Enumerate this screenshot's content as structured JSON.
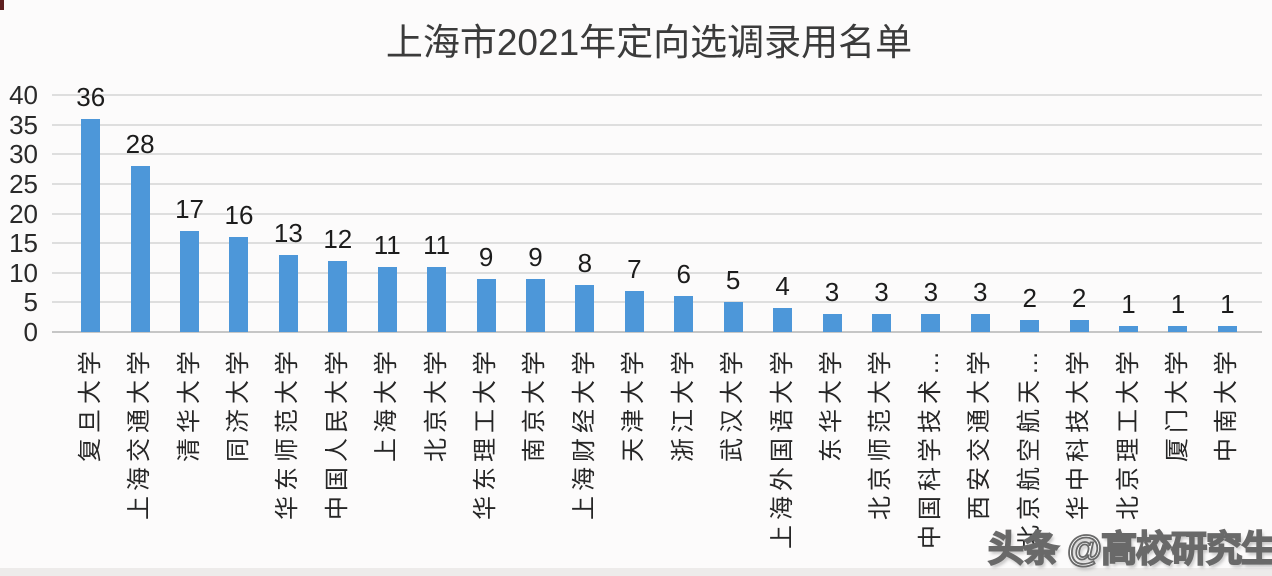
{
  "chart_data": {
    "type": "bar",
    "title": "上海市2021年定向选调录用名单",
    "categories": [
      "复旦大学",
      "上海交通大学",
      "清华大学",
      "同济大学",
      "华东师范大学",
      "中国人民大学",
      "上海大学",
      "北京大学",
      "华东理工大学",
      "南京大学",
      "上海财经大学",
      "天津大学",
      "浙江大学",
      "武汉大学",
      "上海外国语大学",
      "东华大学",
      "北京师范大学",
      "中国科学技术…",
      "西安交通大学",
      "北京航空航天…",
      "华中科技大学",
      "北京理工大学",
      "厦门大学",
      "中南大学"
    ],
    "values": [
      36,
      28,
      17,
      16,
      13,
      12,
      11,
      11,
      9,
      9,
      8,
      7,
      6,
      5,
      4,
      3,
      3,
      3,
      3,
      2,
      2,
      1,
      1,
      1
    ],
    "y_ticks": [
      0,
      5,
      10,
      15,
      20,
      25,
      30,
      35,
      40
    ],
    "ylim": [
      0,
      40
    ],
    "xlabel": "",
    "ylabel": "",
    "grid": true,
    "legend": false,
    "data_labels": true,
    "bar_color": "#4d97d9",
    "grid_color": "#dedede",
    "axis_line_color": "#c6c6c6"
  },
  "watermark": {
    "text": "头条 @高校研究生"
  }
}
